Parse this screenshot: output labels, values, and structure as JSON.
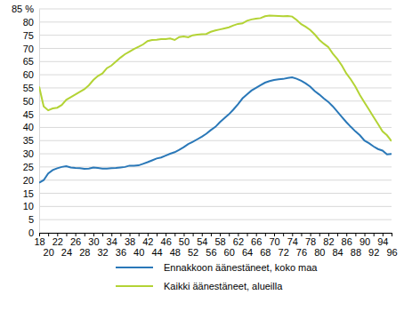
{
  "chart_data": {
    "type": "line",
    "x": [
      18,
      19,
      20,
      21,
      22,
      23,
      24,
      25,
      26,
      27,
      28,
      29,
      30,
      31,
      32,
      33,
      34,
      35,
      36,
      37,
      38,
      39,
      40,
      41,
      42,
      43,
      44,
      45,
      46,
      47,
      48,
      49,
      50,
      51,
      52,
      53,
      54,
      55,
      56,
      57,
      58,
      59,
      60,
      61,
      62,
      63,
      64,
      65,
      66,
      67,
      68,
      69,
      70,
      71,
      72,
      73,
      74,
      75,
      76,
      77,
      78,
      79,
      80,
      81,
      82,
      83,
      84,
      85,
      86,
      87,
      88,
      89,
      90,
      91,
      92,
      93,
      94,
      95,
      96
    ],
    "series": [
      {
        "name": "Ennakkoon äänestäneet, koko maa",
        "color": "#2a78b8",
        "values": [
          19,
          20,
          22.5,
          23.8,
          24.5,
          25,
          25.3,
          24.8,
          24.6,
          24.5,
          24.3,
          24.4,
          24.8,
          24.6,
          24.4,
          24.4,
          24.5,
          24.6,
          24.8,
          25,
          25.5,
          25.5,
          25.6,
          26.2,
          26.8,
          27.5,
          28.2,
          28.6,
          29.3,
          30,
          30.6,
          31.5,
          32.5,
          33.7,
          34.5,
          35.5,
          36.5,
          37.6,
          39,
          40.2,
          42,
          43.5,
          45,
          46.8,
          48.8,
          51,
          52.5,
          54,
          55,
          56,
          57,
          57.6,
          58,
          58.3,
          58.4,
          58.8,
          59,
          58.5,
          57.7,
          56.7,
          55.5,
          53.8,
          52.5,
          51,
          49.7,
          48,
          46,
          44,
          42,
          40.2,
          38.5,
          37,
          35,
          34,
          32.8,
          31.8,
          31.2,
          29.8,
          29.9
        ]
      },
      {
        "name": "Kaikki äänestäneet, alueilla",
        "color": "#b3d335",
        "values": [
          55.5,
          48,
          46.5,
          47.2,
          47.5,
          48.5,
          50.5,
          51.5,
          52.5,
          53.5,
          54.5,
          56,
          58,
          59.5,
          60.5,
          62.5,
          63.5,
          65,
          66.5,
          67.8,
          68.8,
          69.8,
          70.6,
          71.5,
          72.8,
          73.2,
          73.3,
          73.5,
          73.5,
          73.8,
          73.2,
          74.3,
          74.5,
          74.2,
          75,
          75.2,
          75.4,
          75.5,
          76.3,
          76.8,
          77.2,
          77.6,
          78,
          78.7,
          79.3,
          79.5,
          80.5,
          81,
          81.3,
          81.5,
          82.2,
          82.5,
          82.4,
          82.3,
          82.2,
          82.3,
          82.1,
          80.8,
          79.2,
          78.2,
          77,
          75.3,
          73.3,
          71.8,
          70.5,
          68,
          66,
          63.5,
          60.5,
          58.2,
          55.5,
          52.3,
          49.5,
          46.8,
          44,
          41.3,
          38.5,
          37,
          34.8
        ]
      }
    ],
    "xlim": [
      18,
      96
    ],
    "xticks": [
      18,
      20,
      22,
      24,
      26,
      28,
      30,
      32,
      34,
      36,
      38,
      40,
      42,
      44,
      46,
      48,
      50,
      52,
      54,
      56,
      58,
      60,
      62,
      64,
      66,
      68,
      70,
      72,
      74,
      76,
      78,
      80,
      82,
      84,
      86,
      88,
      90,
      92,
      94,
      96
    ],
    "ylim": [
      0,
      85
    ],
    "yticks": [
      0,
      5,
      10,
      15,
      20,
      25,
      30,
      35,
      40,
      45,
      50,
      55,
      60,
      65,
      70,
      75,
      80,
      {
        "value": 85,
        "label": "85 %"
      }
    ],
    "grid": true,
    "legend": "bottom"
  }
}
